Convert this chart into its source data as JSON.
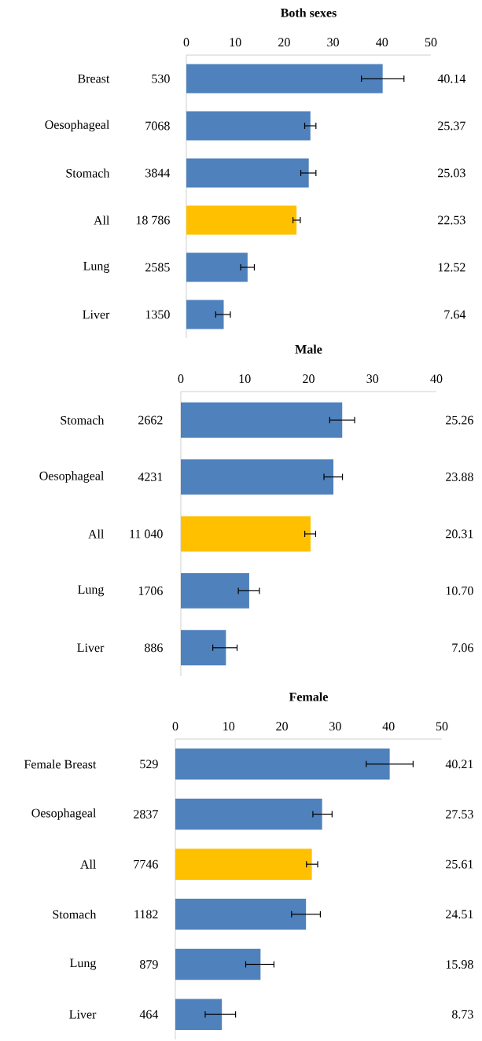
{
  "chart_data": [
    {
      "type": "bar",
      "orientation": "horizontal",
      "title": "Both sexes",
      "categories": [
        "Breast",
        "Oesophageal",
        "Stomach",
        "All",
        "Lung",
        "Liver"
      ],
      "values": [
        40.14,
        25.37,
        25.03,
        22.53,
        12.52,
        7.64
      ],
      "colors": [
        "#4f81bd",
        "#4f81bd",
        "#4f81bd",
        "#ffc000",
        "#4f81bd",
        "#4f81bd"
      ],
      "errors": [
        [
          35.8,
          44.5
        ],
        [
          24.2,
          26.5
        ],
        [
          23.4,
          26.5
        ],
        [
          21.8,
          23.3
        ],
        [
          11.1,
          13.9
        ],
        [
          6.0,
          9.0
        ]
      ],
      "value_labels": [
        "40.14",
        "25.37",
        "25.03",
        "22.53",
        "12.52",
        "7.64"
      ],
      "annotations": [
        "530",
        "7068",
        "3844",
        "18 786",
        "2585",
        "1350"
      ],
      "xlim": [
        0,
        50
      ],
      "xticks": [
        0,
        10,
        20,
        30,
        40,
        50
      ]
    },
    {
      "type": "bar",
      "orientation": "horizontal",
      "title": "Male",
      "categories": [
        "Stomach",
        "Oesophageal",
        "All",
        "Lung",
        "Liver"
      ],
      "values": [
        25.26,
        23.88,
        20.31,
        10.7,
        7.06
      ],
      "colors": [
        "#4f81bd",
        "#4f81bd",
        "#ffc000",
        "#4f81bd",
        "#4f81bd"
      ],
      "errors": [
        [
          23.3,
          27.2
        ],
        [
          22.4,
          25.3
        ],
        [
          19.4,
          21.1
        ],
        [
          9.0,
          12.3
        ],
        [
          5.0,
          8.8
        ]
      ],
      "value_labels": [
        "25.26",
        "23.88",
        "20.31",
        "10.70",
        "7.06"
      ],
      "annotations": [
        "2662",
        "4231",
        "11 040",
        "1706",
        "886"
      ],
      "xlim": [
        0,
        40
      ],
      "xticks": [
        0,
        10,
        20,
        30,
        40
      ]
    },
    {
      "type": "bar",
      "orientation": "horizontal",
      "title": "Female",
      "categories": [
        "Female Breast",
        "Oesophageal",
        "All",
        "Stomach",
        "Lung",
        "Liver"
      ],
      "values": [
        40.21,
        27.53,
        25.61,
        24.51,
        15.98,
        8.73
      ],
      "colors": [
        "#4f81bd",
        "#4f81bd",
        "#ffc000",
        "#4f81bd",
        "#4f81bd",
        "#4f81bd"
      ],
      "errors": [
        [
          35.8,
          44.6
        ],
        [
          25.8,
          29.4
        ],
        [
          24.6,
          26.7
        ],
        [
          21.8,
          27.2
        ],
        [
          13.2,
          18.5
        ],
        [
          5.6,
          11.3
        ]
      ],
      "value_labels": [
        "40.21",
        "27.53",
        "25.61",
        "24.51",
        "15.98",
        "8.73"
      ],
      "annotations": [
        "529",
        "2837",
        "7746",
        "1182",
        "879",
        "464"
      ],
      "xlim": [
        0,
        50
      ],
      "xticks": [
        0,
        10,
        20,
        30,
        40,
        50
      ]
    }
  ]
}
